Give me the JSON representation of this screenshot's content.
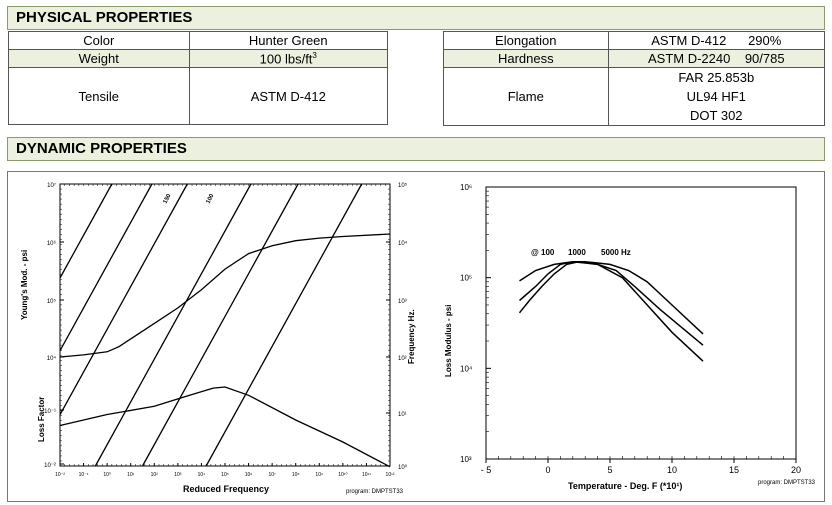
{
  "physical": {
    "header": "PHYSICAL PROPERTIES",
    "rows_left": [
      {
        "label": "Color",
        "value": "Hunter Green"
      },
      {
        "label": "Weight",
        "value": "100 lbs/ft",
        "sup": "3"
      },
      {
        "label": "Tensile",
        "value": "ASTM D-412"
      }
    ],
    "rows_right": [
      {
        "label": "Elongation",
        "value": "ASTM D-412",
        "extra": "290%"
      },
      {
        "label": "Hardness",
        "value": "ASTM D-2240",
        "extra": "90/785"
      },
      {
        "label": "Flame",
        "lines": [
          "FAR 25.853b",
          "UL94 HF1",
          "DOT 302"
        ]
      }
    ]
  },
  "dynamic": {
    "header": "DYNAMIC PROPERTIES"
  },
  "chart_data": [
    {
      "type": "line",
      "title": "",
      "xlabel": "Reduced Frequency",
      "ylabel_left_top": "Young's Mod. - psi",
      "ylabel_left_bottom": "Loss Factor",
      "ylabel_right": "Frequency Hz.",
      "footer": "program: DMPTST33",
      "x_ticks": [
        "10⁻²",
        "10⁻¹",
        "10⁰",
        "10¹",
        "10²",
        "10³",
        "10⁴",
        "10⁵",
        "10⁶",
        "10⁷",
        "10⁸",
        "10⁹",
        "10¹⁰",
        "10¹¹",
        "10¹²"
      ],
      "y_left_ticks": [
        "10⁷",
        "10⁶",
        "10⁵",
        "10⁴",
        "10⁻¹",
        "10⁻²"
      ],
      "y_right_ticks": [
        "10⁵",
        "10⁴",
        "10³",
        "10²",
        "10¹",
        "10⁰"
      ],
      "line_labels": [
        "150",
        "100"
      ],
      "series": [
        {
          "name": "modulus",
          "x_log": [
            -2,
            -1,
            0,
            0.5,
            1,
            2,
            3,
            4,
            5,
            6,
            7,
            8,
            9,
            10,
            12
          ],
          "y_log": [
            4,
            4.04,
            4.1,
            4.2,
            4.35,
            4.65,
            4.95,
            5.3,
            5.7,
            6.0,
            6.15,
            6.25,
            6.3,
            6.33,
            6.38
          ]
        },
        {
          "name": "loss factor",
          "x_log": [
            -2,
            0,
            2,
            3.5,
            4.5,
            5,
            6,
            8,
            10,
            12
          ],
          "y_log": [
            -1.3,
            -1.1,
            -0.95,
            -0.75,
            -0.62,
            -0.6,
            -0.75,
            -1.2,
            -1.6,
            -2.05
          ]
        }
      ]
    },
    {
      "type": "line",
      "title": "",
      "xlabel": "Temperature - Deg. F (*10¹)",
      "ylabel": "Loss Modulus - psi",
      "footer": "program: DMPTST33",
      "x_ticks": [
        -5,
        0,
        5,
        10,
        15,
        20
      ],
      "y_ticks": [
        "10⁶",
        "10⁵",
        "10⁴",
        "10³"
      ],
      "xlim": [
        -5,
        20
      ],
      "ylim_log": [
        3,
        6
      ],
      "legend_text": [
        "@ 100",
        "1000",
        "5000 Hz"
      ],
      "series": [
        {
          "name": "@ 100",
          "x": [
            -2.3,
            -1.5,
            -0.5,
            0.5,
            1.5,
            2.5,
            4,
            6,
            8,
            10,
            12.5
          ],
          "y": [
            41000,
            56000,
            80000,
            110000,
            140000,
            150000,
            140000,
            100000,
            50000,
            25000,
            12000
          ]
        },
        {
          "name": "1000",
          "x": [
            -2.3,
            -1,
            0,
            1,
            2,
            3,
            4,
            5.5,
            7,
            9,
            12.5
          ],
          "y": [
            56000,
            80000,
            110000,
            140000,
            150000,
            145000,
            140000,
            120000,
            80000,
            45000,
            18000
          ]
        },
        {
          "name": "5000 Hz",
          "x": [
            -2.3,
            -1,
            0.5,
            2,
            3,
            4,
            5,
            6.5,
            8,
            10,
            12.5
          ],
          "y": [
            92000,
            120000,
            140000,
            150000,
            150000,
            145000,
            140000,
            120000,
            90000,
            50000,
            24000
          ]
        }
      ]
    }
  ]
}
